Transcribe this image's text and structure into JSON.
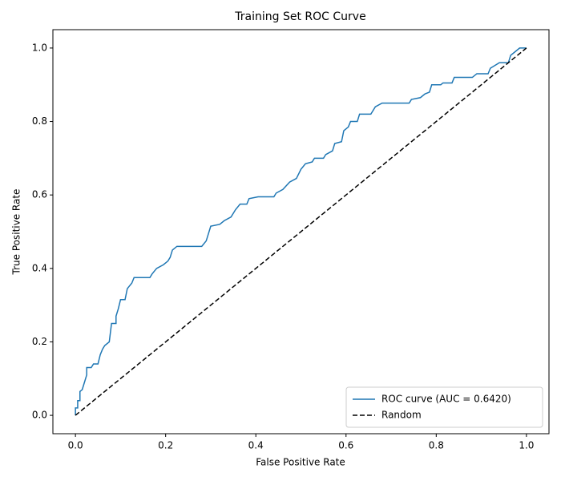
{
  "chart_data": {
    "type": "line",
    "title": "Training Set ROC Curve",
    "xlabel": "False Positive Rate",
    "ylabel": "True Positive Rate",
    "xlim": [
      -0.05,
      1.05
    ],
    "ylim": [
      -0.05,
      1.05
    ],
    "xticks": [
      {
        "value": 0,
        "label": "0.0"
      },
      0.2,
      0.4,
      0.6,
      0.8,
      {
        "value": 1,
        "label": "1.0"
      }
    ],
    "yticks": [
      {
        "value": 0,
        "label": "0.0"
      },
      0.2,
      0.4,
      0.6,
      0.8,
      {
        "value": 1,
        "label": "1.0"
      }
    ],
    "legend": "lower right",
    "series": [
      {
        "name": "ROC curve (AUC = 0.6420)",
        "color": "#1f77b4",
        "linestyle": "solid",
        "x": [
          0,
          0,
          0.005,
          0.005,
          0.01,
          0.01,
          0.015,
          0.02,
          0.025,
          0.025,
          0.035,
          0.04,
          0.05,
          0.055,
          0.06,
          0.065,
          0.075,
          0.08,
          0.09,
          0.09,
          0.095,
          0.1,
          0.11,
          0.115,
          0.125,
          0.13,
          0.165,
          0.17,
          0.18,
          0.195,
          0.205,
          0.21,
          0.215,
          0.225,
          0.28,
          0.29,
          0.295,
          0.3,
          0.32,
          0.33,
          0.345,
          0.355,
          0.365,
          0.38,
          0.385,
          0.405,
          0.44,
          0.445,
          0.46,
          0.475,
          0.49,
          0.5,
          0.51,
          0.525,
          0.53,
          0.55,
          0.555,
          0.57,
          0.575,
          0.59,
          0.595,
          0.605,
          0.61,
          0.625,
          0.63,
          0.655,
          0.665,
          0.68,
          0.74,
          0.745,
          0.765,
          0.775,
          0.785,
          0.79,
          0.81,
          0.815,
          0.835,
          0.84,
          0.88,
          0.89,
          0.915,
          0.92,
          0.94,
          0.96,
          0.965,
          0.975,
          0.985,
          1
        ],
        "values": [
          0,
          0.02,
          0.02,
          0.04,
          0.04,
          0.065,
          0.07,
          0.09,
          0.11,
          0.13,
          0.13,
          0.14,
          0.14,
          0.165,
          0.18,
          0.19,
          0.2,
          0.25,
          0.25,
          0.27,
          0.29,
          0.315,
          0.315,
          0.345,
          0.36,
          0.375,
          0.375,
          0.385,
          0.4,
          0.41,
          0.42,
          0.43,
          0.45,
          0.46,
          0.46,
          0.475,
          0.495,
          0.515,
          0.52,
          0.53,
          0.54,
          0.56,
          0.575,
          0.575,
          0.59,
          0.595,
          0.595,
          0.605,
          0.615,
          0.635,
          0.645,
          0.67,
          0.685,
          0.69,
          0.7,
          0.7,
          0.71,
          0.72,
          0.74,
          0.745,
          0.775,
          0.785,
          0.8,
          0.8,
          0.82,
          0.82,
          0.84,
          0.85,
          0.85,
          0.86,
          0.865,
          0.875,
          0.88,
          0.9,
          0.9,
          0.905,
          0.905,
          0.92,
          0.92,
          0.93,
          0.93,
          0.945,
          0.96,
          0.96,
          0.98,
          0.99,
          1,
          1
        ]
      },
      {
        "name": "Random",
        "color": "#000000",
        "linestyle": "dashed",
        "x": [
          0,
          1
        ],
        "values": [
          0,
          1
        ]
      }
    ]
  }
}
